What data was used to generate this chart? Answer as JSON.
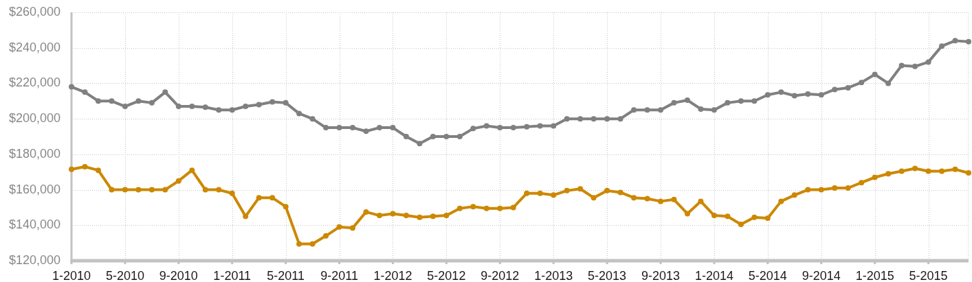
{
  "chart_data": {
    "type": "line",
    "categories": [
      "1-2010",
      null,
      null,
      null,
      "5-2010",
      null,
      null,
      null,
      "9-2010",
      null,
      null,
      null,
      "1-2011",
      null,
      null,
      null,
      "5-2011",
      null,
      null,
      null,
      "9-2011",
      null,
      null,
      null,
      "1-2012",
      null,
      null,
      null,
      "5-2012",
      null,
      null,
      null,
      "9-2012",
      null,
      null,
      null,
      "1-2013",
      null,
      null,
      null,
      "5-2013",
      null,
      null,
      null,
      "9-2013",
      null,
      null,
      null,
      "1-2014",
      null,
      null,
      null,
      "5-2014",
      null,
      null,
      null,
      "9-2014",
      null,
      null,
      null,
      "1-2015",
      null,
      null,
      null,
      "5-2015",
      null,
      null,
      null
    ],
    "series": [
      {
        "color": "#808080",
        "values": [
          218000,
          215000,
          210000,
          210000,
          207000,
          210000,
          209000,
          215000,
          207000,
          207000,
          206500,
          205000,
          205000,
          207000,
          208000,
          209500,
          209000,
          203000,
          200000,
          195000,
          195000,
          195000,
          193000,
          195000,
          195000,
          190000,
          186000,
          190000,
          190000,
          190000,
          194500,
          196000,
          195000,
          195000,
          195500,
          196000,
          196000,
          200000,
          200000,
          200000,
          200000,
          200000,
          205000,
          205000,
          205000,
          209000,
          210500,
          205500,
          205000,
          209000,
          210000,
          210000,
          213500,
          215000,
          213000,
          214000,
          213500,
          216500,
          217500,
          220500,
          225000,
          220000,
          230000,
          229500,
          232000,
          241000,
          244000,
          243500
        ]
      },
      {
        "color": "#cc8800",
        "values": [
          171500,
          173000,
          171000,
          160000,
          160000,
          160000,
          160000,
          160000,
          165000,
          171000,
          160000,
          160000,
          158000,
          145000,
          155500,
          155500,
          150500,
          129500,
          129500,
          134000,
          139000,
          138500,
          147500,
          145500,
          146500,
          145500,
          144500,
          145000,
          145500,
          149500,
          150500,
          149500,
          149500,
          150000,
          158000,
          158000,
          157000,
          159500,
          160500,
          155500,
          159500,
          158500,
          155500,
          155000,
          153500,
          154500,
          146500,
          153500,
          145500,
          145000,
          140500,
          144500,
          144000,
          153500,
          157000,
          160000,
          160000,
          161000,
          161000,
          164000,
          167000,
          169000,
          170500,
          172000,
          170500,
          170500,
          171500,
          169500
        ]
      }
    ],
    "ylim": [
      120000,
      260000
    ],
    "yticks": [
      {
        "value": 120000,
        "label": "$120,000"
      },
      {
        "value": 140000,
        "label": "$140,000"
      },
      {
        "value": 160000,
        "label": "$160,000"
      },
      {
        "value": 180000,
        "label": "$180,000"
      },
      {
        "value": 200000,
        "label": "$200,000"
      },
      {
        "value": 220000,
        "label": "$220,000"
      },
      {
        "value": 240000,
        "label": "$240,000"
      },
      {
        "value": 260000,
        "label": "$260,000"
      }
    ],
    "grid": true,
    "marker": "circle",
    "line_style": "solid"
  }
}
